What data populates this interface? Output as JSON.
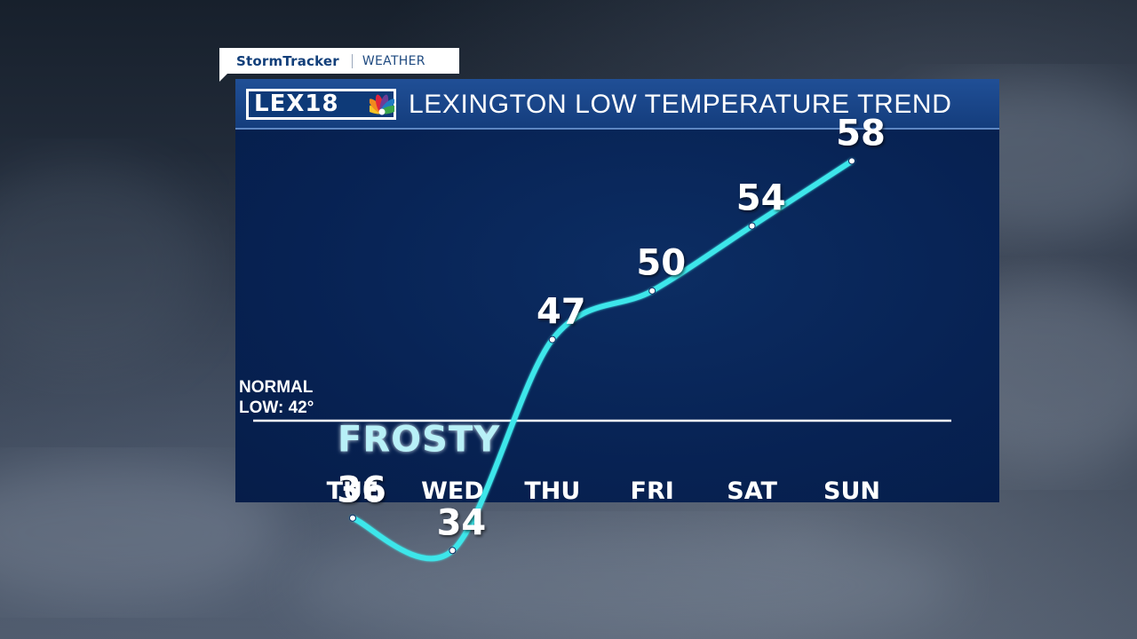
{
  "brand_tab": {
    "name": "StormTracker",
    "section": "WEATHER"
  },
  "logo": {
    "text": "LEX18"
  },
  "colors": {
    "panel": "#072253",
    "header": "#1a4687",
    "line": "#3ee6ea",
    "normal_line": "#ffffff",
    "frosty": "#b8f0f7"
  },
  "chart_data": {
    "type": "line",
    "title": "LEXINGTON LOW TEMPERATURE TREND",
    "categories": [
      "TUE",
      "WED",
      "THU",
      "FRI",
      "SAT",
      "SUN"
    ],
    "values": [
      36,
      34,
      47,
      50,
      54,
      58
    ],
    "value_labels": [
      "36",
      "34",
      "47",
      "50",
      "54",
      "58"
    ],
    "reference": {
      "value": 42,
      "label_line1": "NORMAL",
      "label_line2": "LOW: 42°"
    },
    "annotation": "FROSTY",
    "ylim": [
      28,
      63
    ],
    "grid": false,
    "legend": "none"
  }
}
